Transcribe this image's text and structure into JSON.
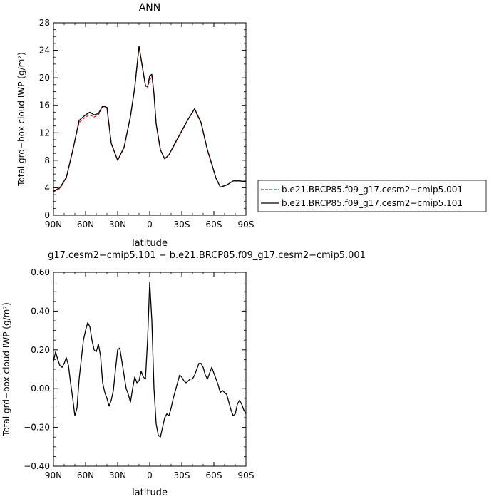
{
  "chart_data": [
    {
      "type": "line",
      "title": "ANN",
      "xlabel": "latitude",
      "ylabel": "Total grd−box cloud IWP (g/m²)",
      "xlim": [
        90,
        -90
      ],
      "ylim": [
        0,
        28
      ],
      "x_ticks": [
        90,
        60,
        30,
        0,
        -30,
        -60,
        -90
      ],
      "x_tick_labels": [
        "90N",
        "60N",
        "30N",
        "0",
        "30S",
        "60S",
        "90S"
      ],
      "y_ticks": [
        0,
        4,
        8,
        12,
        16,
        20,
        24,
        28
      ],
      "y_tick_labels": [
        "0",
        "4",
        "8",
        "12",
        "16",
        "20",
        "24",
        "28"
      ],
      "legend_position": "right",
      "x": [
        90,
        84,
        78,
        72,
        66,
        60,
        56,
        52,
        48,
        44,
        40,
        36,
        30,
        24,
        18,
        14,
        10,
        6,
        4,
        2,
        0,
        -2,
        -4,
        -6,
        -10,
        -14,
        -18,
        -24,
        -30,
        -36,
        -42,
        -48,
        -54,
        -58,
        -62,
        -66,
        -72,
        -78,
        -84,
        -90
      ],
      "series": [
        {
          "name": "b.e21.BRCP85.f09_g17.cesm2−cmip5.001",
          "color": "#e31a1c",
          "dash": "dashed",
          "values": [
            3.4,
            3.9,
            5.4,
            9.5,
            13.5,
            14.3,
            14.6,
            14.3,
            14.6,
            15.8,
            15.6,
            10.4,
            8.0,
            9.8,
            14.3,
            18.5,
            24.5,
            20.7,
            18.8,
            18.5,
            19.7,
            20.2,
            17.6,
            13.4,
            9.6,
            8.2,
            8.8,
            10.5,
            12.2,
            14.0,
            15.4,
            13.4,
            9.4,
            7.4,
            5.4,
            4.1,
            4.4,
            5.0,
            5.0,
            4.9
          ]
        },
        {
          "name": "b.e21.BRCP85.f09_g17.cesm2−cmip5.101",
          "color": "#000000",
          "dash": "solid",
          "values": [
            3.5,
            4.0,
            5.5,
            9.4,
            13.8,
            14.6,
            15.0,
            14.6,
            14.8,
            15.9,
            15.7,
            10.5,
            8.0,
            9.9,
            14.4,
            18.6,
            24.6,
            20.8,
            18.9,
            18.7,
            20.3,
            20.5,
            17.7,
            13.3,
            9.5,
            8.2,
            8.8,
            10.6,
            12.3,
            14.0,
            15.5,
            13.5,
            9.5,
            7.5,
            5.4,
            4.1,
            4.4,
            5.0,
            5.0,
            4.9
          ]
        }
      ]
    },
    {
      "type": "line",
      "title": "g17.cesm2−cmip5.101 − b.e21.BRCP85.f09_g17.cesm2−cmip5.001",
      "xlabel": "latitude",
      "ylabel": "Total grd−box cloud IWP (g/m²)",
      "xlim": [
        90,
        -90
      ],
      "ylim": [
        -0.4,
        0.6
      ],
      "x_ticks": [
        90,
        60,
        30,
        0,
        -30,
        -60,
        -90
      ],
      "x_tick_labels": [
        "90N",
        "60N",
        "30N",
        "0",
        "30S",
        "60S",
        "90S"
      ],
      "y_ticks": [
        -0.4,
        -0.2,
        0,
        0.2,
        0.4,
        0.6
      ],
      "y_tick_labels": [
        "−0.40",
        "−0.20",
        "0.00",
        "0.20",
        "0.40",
        "0.60"
      ],
      "x": [
        90,
        88,
        86,
        84,
        82,
        80,
        78,
        76,
        74,
        72,
        70,
        68,
        66,
        64,
        62,
        60,
        58,
        56,
        54,
        52,
        50,
        48,
        46,
        44,
        42,
        40,
        38,
        36,
        34,
        32,
        30,
        28,
        26,
        24,
        22,
        20,
        18,
        16,
        14,
        12,
        10,
        8,
        6,
        4,
        2,
        0,
        -2,
        -4,
        -6,
        -8,
        -10,
        -12,
        -14,
        -16,
        -18,
        -20,
        -22,
        -24,
        -26,
        -28,
        -30,
        -32,
        -34,
        -36,
        -38,
        -40,
        -42,
        -44,
        -46,
        -48,
        -50,
        -52,
        -54,
        -56,
        -58,
        -60,
        -62,
        -64,
        -66,
        -68,
        -70,
        -72,
        -74,
        -76,
        -78,
        -80,
        -82,
        -84,
        -86,
        -88,
        -90
      ],
      "series": [
        {
          "color": "#000000",
          "dash": "solid",
          "values": [
            0.14,
            0.19,
            0.15,
            0.12,
            0.11,
            0.13,
            0.16,
            0.12,
            0.03,
            -0.05,
            -0.14,
            -0.1,
            0.05,
            0.15,
            0.25,
            0.3,
            0.34,
            0.32,
            0.25,
            0.2,
            0.19,
            0.23,
            0.17,
            0.03,
            -0.02,
            -0.05,
            -0.09,
            -0.06,
            -0.01,
            0.1,
            0.2,
            0.21,
            0.14,
            0.07,
            0.0,
            -0.03,
            -0.07,
            0.0,
            0.06,
            0.03,
            0.04,
            0.09,
            0.06,
            0.05,
            0.25,
            0.55,
            0.35,
            0.0,
            -0.18,
            -0.24,
            -0.25,
            -0.2,
            -0.15,
            -0.13,
            -0.14,
            -0.1,
            -0.05,
            -0.01,
            0.03,
            0.07,
            0.06,
            0.04,
            0.03,
            0.04,
            0.05,
            0.05,
            0.07,
            0.1,
            0.13,
            0.13,
            0.11,
            0.07,
            0.05,
            0.08,
            0.11,
            0.08,
            0.05,
            0.02,
            -0.02,
            -0.01,
            -0.02,
            -0.03,
            -0.07,
            -0.11,
            -0.14,
            -0.13,
            -0.08,
            -0.06,
            -0.08,
            -0.11,
            -0.13
          ]
        }
      ]
    }
  ]
}
